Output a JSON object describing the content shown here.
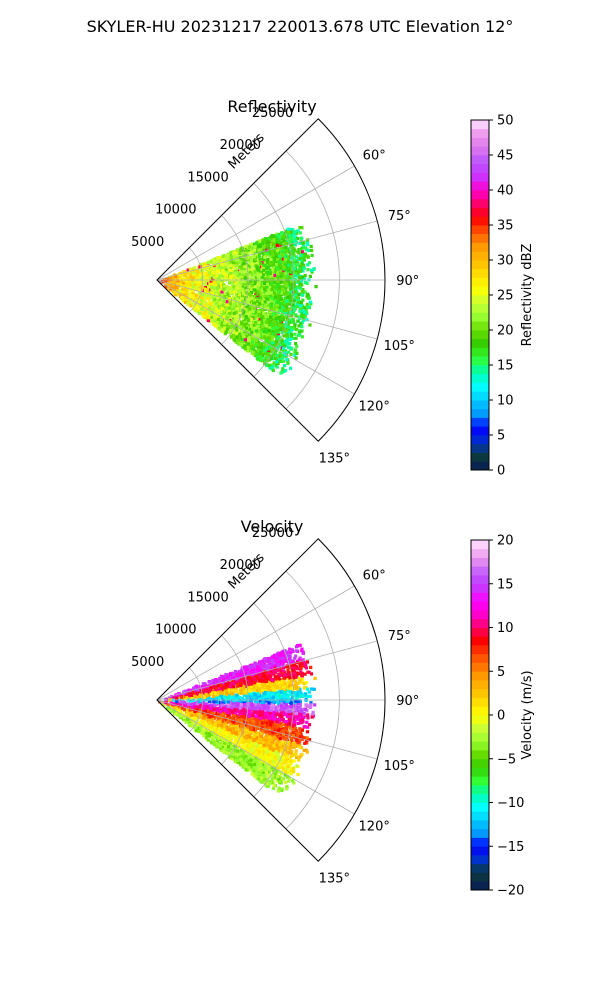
{
  "figure": {
    "title": "SKYLER-HU  20231217  220013.678 UTC Elevation 12°"
  },
  "chart_data": [
    {
      "type": "heatmap",
      "subtype": "polar-sector-radar",
      "title": "Reflectivity",
      "radial_axis_label": "Meters",
      "radial_ticks": [
        "5000",
        "10000",
        "15000",
        "20000",
        "25000"
      ],
      "radial_tick_values": [
        5000,
        10000,
        15000,
        20000,
        25000
      ],
      "angle_ticks": [
        "60°",
        "75°",
        "90°",
        "105°",
        "120°",
        "135°"
      ],
      "angle_tick_values": [
        60,
        75,
        90,
        105,
        120,
        135
      ],
      "theta_range_deg": [
        45,
        135
      ],
      "r_max_m": 25000,
      "grid": true,
      "field_theta_range_deg": [
        68,
        128
      ],
      "data_extent_m": 17500,
      "field_profile": [
        {
          "r": 0.05,
          "value": 32
        },
        {
          "r": 0.15,
          "value": 28
        },
        {
          "r": 0.3,
          "value": 25
        },
        {
          "r": 0.45,
          "value": 23
        },
        {
          "r": 0.6,
          "value": 21
        },
        {
          "r": 0.75,
          "value": 19
        },
        {
          "r": 0.9,
          "value": 16
        }
      ],
      "colorbar": {
        "label": "Reflectivity dBZ",
        "min": 0,
        "max": 50,
        "ticks": [
          "0",
          "5",
          "10",
          "15",
          "20",
          "25",
          "30",
          "35",
          "40",
          "45",
          "50"
        ],
        "tick_values": [
          0,
          5,
          10,
          15,
          20,
          25,
          30,
          35,
          40,
          45,
          50
        ],
        "stops": [
          {
            "v": 0,
            "c": "#0a1a5a"
          },
          {
            "v": 2,
            "c": "#0b3a3a"
          },
          {
            "v": 4,
            "c": "#0033cc"
          },
          {
            "v": 6,
            "c": "#0000ff"
          },
          {
            "v": 8,
            "c": "#0099ff"
          },
          {
            "v": 10,
            "c": "#00ccff"
          },
          {
            "v": 12,
            "c": "#00ffff"
          },
          {
            "v": 14,
            "c": "#00ffaa"
          },
          {
            "v": 16,
            "c": "#33ff33"
          },
          {
            "v": 18,
            "c": "#33cc00"
          },
          {
            "v": 20,
            "c": "#66dd00"
          },
          {
            "v": 22,
            "c": "#99ff33"
          },
          {
            "v": 24,
            "c": "#ccff33"
          },
          {
            "v": 26,
            "c": "#ffff00"
          },
          {
            "v": 28,
            "c": "#ffdd00"
          },
          {
            "v": 30,
            "c": "#ffbb00"
          },
          {
            "v": 32,
            "c": "#ff9900"
          },
          {
            "v": 34,
            "c": "#ff5500"
          },
          {
            "v": 36,
            "c": "#ff0000"
          },
          {
            "v": 38,
            "c": "#ff0066"
          },
          {
            "v": 40,
            "c": "#ff00cc"
          },
          {
            "v": 42,
            "c": "#cc33ff"
          },
          {
            "v": 44,
            "c": "#bb55ff"
          },
          {
            "v": 46,
            "c": "#dd77ee"
          },
          {
            "v": 48,
            "c": "#ee99ee"
          },
          {
            "v": 50,
            "c": "#ffe6ff"
          }
        ]
      }
    },
    {
      "type": "heatmap",
      "subtype": "polar-sector-radar",
      "title": "Velocity",
      "radial_axis_label": "Meters",
      "radial_ticks": [
        "5000",
        "10000",
        "15000",
        "20000",
        "25000"
      ],
      "radial_tick_values": [
        5000,
        10000,
        15000,
        20000,
        25000
      ],
      "angle_ticks": [
        "60°",
        "75°",
        "90°",
        "105°",
        "120°",
        "135°"
      ],
      "angle_tick_values": [
        60,
        75,
        90,
        105,
        120,
        135
      ],
      "theta_range_deg": [
        45,
        135
      ],
      "r_max_m": 25000,
      "grid": true,
      "field_theta_range_deg": [
        68,
        128
      ],
      "data_extent_m": 17500,
      "field_bands": [
        {
          "theta": [
            68,
            74
          ],
          "value": 14
        },
        {
          "theta": [
            74,
            80
          ],
          "value": 9
        },
        {
          "theta": [
            80,
            85
          ],
          "value": 2
        },
        {
          "theta": [
            85,
            89
          ],
          "value": -11
        },
        {
          "theta": [
            89,
            91
          ],
          "value": -13
        },
        {
          "theta": [
            91,
            95
          ],
          "value": 16
        },
        {
          "theta": [
            95,
            100
          ],
          "value": 11
        },
        {
          "theta": [
            100,
            107
          ],
          "value": 7
        },
        {
          "theta": [
            107,
            113
          ],
          "value": 3
        },
        {
          "theta": [
            113,
            120
          ],
          "value": 0
        },
        {
          "theta": [
            120,
            128
          ],
          "value": -3
        }
      ],
      "colorbar": {
        "label": "Velocity (m/s)",
        "min": -20,
        "max": 20,
        "ticks": [
          "−20",
          "−15",
          "−10",
          "−5",
          "0",
          "5",
          "10",
          "15",
          "20"
        ],
        "tick_values": [
          -20,
          -15,
          -10,
          -5,
          0,
          5,
          10,
          15,
          20
        ],
        "stops": [
          {
            "v": -20,
            "c": "#0a1a5a"
          },
          {
            "v": -18,
            "c": "#0b3a3a"
          },
          {
            "v": -16.5,
            "c": "#0033cc"
          },
          {
            "v": -15,
            "c": "#0000ff"
          },
          {
            "v": -13.5,
            "c": "#0099ff"
          },
          {
            "v": -12,
            "c": "#00ccff"
          },
          {
            "v": -10.5,
            "c": "#00ffff"
          },
          {
            "v": -9,
            "c": "#00ffaa"
          },
          {
            "v": -7.5,
            "c": "#33ff33"
          },
          {
            "v": -6,
            "c": "#33cc00"
          },
          {
            "v": -4.5,
            "c": "#66dd00"
          },
          {
            "v": -3,
            "c": "#99ff33"
          },
          {
            "v": -1.5,
            "c": "#ccff33"
          },
          {
            "v": 0,
            "c": "#ffff00"
          },
          {
            "v": 1.5,
            "c": "#ffdd00"
          },
          {
            "v": 3,
            "c": "#ffbb00"
          },
          {
            "v": 4.5,
            "c": "#ff9900"
          },
          {
            "v": 6.5,
            "c": "#ff5500"
          },
          {
            "v": 8.5,
            "c": "#ff0000"
          },
          {
            "v": 10,
            "c": "#ff0066"
          },
          {
            "v": 11.5,
            "c": "#ff00cc"
          },
          {
            "v": 13,
            "c": "#ff00ff"
          },
          {
            "v": 14.5,
            "c": "#cc33ff"
          },
          {
            "v": 16,
            "c": "#bb55ff"
          },
          {
            "v": 18,
            "c": "#ee99ee"
          },
          {
            "v": 20,
            "c": "#ffe6ff"
          }
        ]
      }
    }
  ]
}
